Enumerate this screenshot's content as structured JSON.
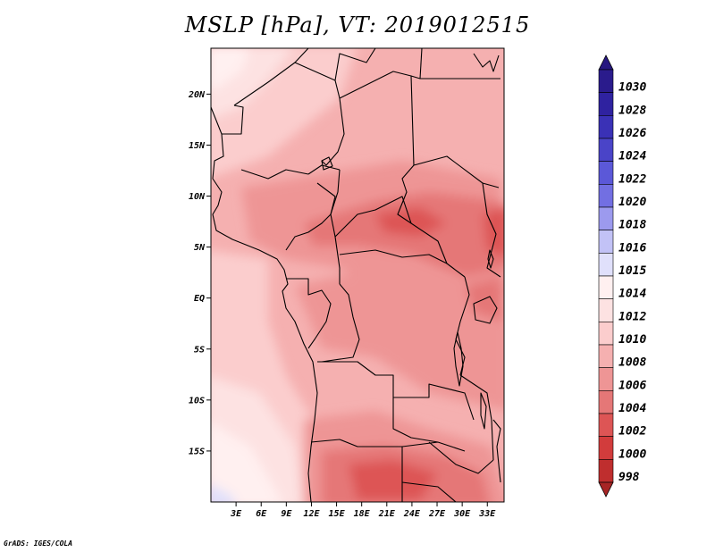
{
  "title": "MSLP [hPa], VT: 2019012515",
  "credit": "GrADS: IGES/COLA",
  "map": {
    "lon_range": [
      0,
      35
    ],
    "lat_range": [
      -20,
      24.5
    ],
    "lat_ticks": [
      {
        "value": 20,
        "label": "20N"
      },
      {
        "value": 15,
        "label": "15N"
      },
      {
        "value": 10,
        "label": "10N"
      },
      {
        "value": 5,
        "label": "5N"
      },
      {
        "value": 0,
        "label": "EQ"
      },
      {
        "value": -5,
        "label": "5S"
      },
      {
        "value": -10,
        "label": "10S"
      },
      {
        "value": -15,
        "label": "15S"
      }
    ],
    "lon_ticks": [
      {
        "value": 3,
        "label": "3E"
      },
      {
        "value": 6,
        "label": "6E"
      },
      {
        "value": 9,
        "label": "9E"
      },
      {
        "value": 12,
        "label": "12E"
      },
      {
        "value": 15,
        "label": "15E"
      },
      {
        "value": 18,
        "label": "18E"
      },
      {
        "value": 21,
        "label": "21E"
      },
      {
        "value": 24,
        "label": "24E"
      },
      {
        "value": 27,
        "label": "27E"
      },
      {
        "value": 30,
        "label": "30E"
      },
      {
        "value": 33,
        "label": "33E"
      }
    ]
  },
  "colorbar": {
    "levels": [
      {
        "label": "1030",
        "color": "#2a1b8c"
      },
      {
        "label": "1028",
        "color": "#2f22a0"
      },
      {
        "label": "1026",
        "color": "#3a31b6"
      },
      {
        "label": "1024",
        "color": "#4a44c8"
      },
      {
        "label": "1022",
        "color": "#5b58d8"
      },
      {
        "label": "1020",
        "color": "#726fe2"
      },
      {
        "label": "1018",
        "color": "#9c9aee"
      },
      {
        "label": "1016",
        "color": "#c2c2f6"
      },
      {
        "label": "1015",
        "color": "#e0e0fb"
      },
      {
        "label": "1014",
        "color": "#fff0f0"
      },
      {
        "label": "1012",
        "color": "#fde2e2"
      },
      {
        "label": "1010",
        "color": "#fbcdcd"
      },
      {
        "label": "1008",
        "color": "#f5b0b0"
      },
      {
        "label": "1006",
        "color": "#ee9595"
      },
      {
        "label": "1004",
        "color": "#e57777"
      },
      {
        "label": "1002",
        "color": "#dd5555"
      },
      {
        "label": "1000",
        "color": "#d23c3c"
      },
      {
        "label": "998",
        "color": "#bf2e2e"
      }
    ],
    "top_arrow_color": "#271780",
    "bottom_arrow_color": "#a72525"
  }
}
